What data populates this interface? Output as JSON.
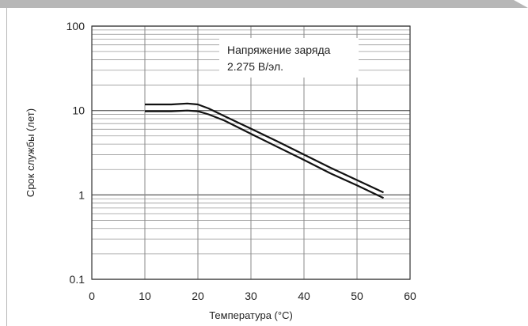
{
  "chart_data": {
    "type": "line",
    "title": "",
    "xlabel": "Температура (°C)",
    "ylabel": "Срок службы (лет)",
    "xlim": [
      0,
      60
    ],
    "ylim": [
      0.1,
      100
    ],
    "y_scale": "log",
    "grid": true,
    "x_ticks": [
      "0",
      "10",
      "20",
      "30",
      "40",
      "50",
      "60"
    ],
    "y_ticks": [
      "100",
      "10",
      "1",
      "0.1"
    ],
    "annotation": {
      "line1": "Напряжение заряда",
      "line2": "2.275 В/эл."
    },
    "series": [
      {
        "x": [
          10,
          15,
          18,
          20,
          22,
          25,
          30,
          35,
          40,
          45,
          50,
          55
        ],
        "y": [
          11.8,
          11.8,
          12.1,
          11.8,
          10.6,
          8.6,
          6.1,
          4.3,
          3.0,
          2.1,
          1.5,
          1.07
        ]
      },
      {
        "x": [
          10,
          15,
          18,
          20,
          22,
          25,
          30,
          35,
          40,
          45,
          50,
          55
        ],
        "y": [
          9.8,
          9.8,
          10.0,
          9.8,
          9.0,
          7.6,
          5.3,
          3.7,
          2.6,
          1.8,
          1.3,
          0.92
        ]
      }
    ]
  },
  "colors": {
    "line": "#111111",
    "grid": "#9a9a9a",
    "frame_bar": "#b7b7b7"
  }
}
